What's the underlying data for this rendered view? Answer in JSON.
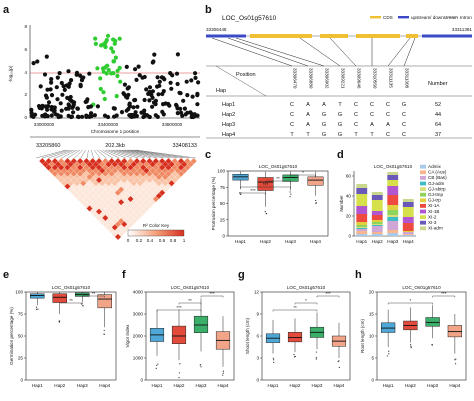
{
  "colors": {
    "hap1": "#4ea7d6",
    "hap2": "#e24b3c",
    "hap3": "#3aaf69",
    "hap4": "#f2a489",
    "cds": "#f0c033",
    "utr": "#3b49c9",
    "intron": "#5a5a5a",
    "manhattan_dark": "#111111",
    "manhattan_highlight": "#2ecc2e",
    "threshold": "#d64545"
  },
  "panel_labels": {
    "a": "a",
    "b": "b",
    "c": "c",
    "d": "d",
    "e": "e",
    "f": "f",
    "g": "g",
    "h": "h"
  },
  "panel_a": {
    "ylabel": "-log₁₀(p)",
    "yticks": [
      "0",
      "2",
      "4",
      "6",
      "8"
    ],
    "xticks": [
      "33000000",
      "33400000",
      "33800000"
    ],
    "xlabel": "Chromosome 1 position",
    "region_left": "33205860",
    "region_mid": "202.3kb",
    "region_right": "33408133",
    "color_key_label": "R² Color Key",
    "color_key_ticks": [
      "0",
      "0.2",
      "0.4",
      "0.6",
      "0.8",
      "1"
    ]
  },
  "panel_b": {
    "gene": "LOC_Os01g57610",
    "legend": [
      "CDS",
      "upstream/ downstream",
      "Intron"
    ],
    "coord_left": "33306448",
    "coord_right": "33311391",
    "position_header": "Position",
    "hap_header": "Hap",
    "number_header": "Number",
    "positions": [
      "33306470",
      "33306880",
      "33306902",
      "33309221",
      "33309646",
      "33310550",
      "33311135",
      "33311308"
    ],
    "rows": [
      {
        "hap": "Hap1",
        "alleles": [
          "C",
          "A",
          "A",
          "T",
          "C",
          "C",
          "C",
          "G"
        ],
        "number": "52"
      },
      {
        "hap": "Hap2",
        "alleles": [
          "C",
          "A",
          "G",
          "G",
          "C",
          "C",
          "C",
          "C"
        ],
        "number": "44"
      },
      {
        "hap": "Hap3",
        "alleles": [
          "C",
          "A",
          "G",
          "G",
          "C",
          "A",
          "A",
          "C"
        ],
        "number": "64"
      },
      {
        "hap": "Hap4",
        "alleles": [
          "T",
          "T",
          "G",
          "G",
          "T",
          "T",
          "C",
          "C"
        ],
        "number": "37"
      }
    ]
  },
  "chart_data": [
    {
      "panel": "c",
      "type": "box",
      "title": "LOC_Os01g57610",
      "ylabel": "Protrusion percentage (%)",
      "ylim": [
        0,
        100
      ],
      "yticks": [
        "0",
        "25",
        "50",
        "75",
        "100"
      ],
      "categories": [
        "Hap1",
        "Hap2",
        "Hap3",
        "Hap4"
      ],
      "boxes": [
        {
          "q1": 86,
          "median": 91,
          "q3": 95,
          "lo": 72,
          "hi": 99
        },
        {
          "q1": 70,
          "median": 83,
          "q3": 90,
          "lo": 45,
          "hi": 99
        },
        {
          "q1": 84,
          "median": 90,
          "q3": 94,
          "lo": 70,
          "hi": 99
        },
        {
          "q1": 78,
          "median": 86,
          "q3": 91,
          "lo": 62,
          "hi": 99
        }
      ],
      "significance": [
        "***",
        "***",
        "**",
        "*"
      ]
    },
    {
      "panel": "d",
      "type": "stacked-bar",
      "title": "LOC_Os01g57610",
      "ylabel": "Number",
      "ylim": [
        0,
        65
      ],
      "yticks": [
        "0",
        "20",
        "40",
        "60"
      ],
      "categories": [
        "Hap1",
        "Hap2",
        "Hap3",
        "Hap4"
      ],
      "series": [
        {
          "name": "Admix",
          "color": "#a9c9ea",
          "values": [
            2,
            2,
            3,
            1
          ]
        },
        {
          "name": "CA (Aus)",
          "color": "#f8b58e",
          "values": [
            3,
            2,
            3,
            1
          ]
        },
        {
          "name": "CB (Bas)",
          "color": "#cfa6d6",
          "values": [
            2,
            6,
            9,
            2
          ]
        },
        {
          "name": "GJ-adm",
          "color": "#3dbcc6",
          "values": [
            1,
            1,
            4,
            0
          ]
        },
        {
          "name": "GJ-sbtrp",
          "color": "#d7df7a",
          "values": [
            1,
            1,
            2,
            0
          ]
        },
        {
          "name": "GJ-tmp",
          "color": "#8fd35d",
          "values": [
            2,
            2,
            5,
            0
          ]
        },
        {
          "name": "GJ-trp",
          "color": "#e0d03d",
          "values": [
            3,
            2,
            5,
            1
          ]
        },
        {
          "name": "XI-1A",
          "color": "#ee4a3f",
          "values": [
            8,
            5,
            10,
            8
          ]
        },
        {
          "name": "XI-1B",
          "color": "#b155d1",
          "values": [
            8,
            4,
            9,
            6
          ]
        },
        {
          "name": "XI-2",
          "color": "#d6e04b",
          "values": [
            12,
            11,
            6,
            10
          ]
        },
        {
          "name": "XI-3",
          "color": "#6b59b9",
          "values": [
            6,
            5,
            5,
            5
          ]
        },
        {
          "name": "XI-adm",
          "color": "#c7d78c",
          "values": [
            4,
            3,
            3,
            3
          ]
        }
      ]
    },
    {
      "panel": "e",
      "type": "box",
      "title": "LOC_Os01g57610",
      "ylabel": "Germination percentage (%)",
      "ylim": [
        0,
        100
      ],
      "yticks": [
        "0",
        "25",
        "50",
        "75",
        "100"
      ],
      "categories": [
        "Hap1",
        "Hap2",
        "Hap3",
        "Hap4"
      ],
      "boxes": [
        {
          "q1": 93,
          "median": 96,
          "q3": 98,
          "lo": 85,
          "hi": 100
        },
        {
          "q1": 88,
          "median": 94,
          "q3": 98,
          "lo": 75,
          "hi": 100
        },
        {
          "q1": 95,
          "median": 97,
          "q3": 99,
          "lo": 88,
          "hi": 100
        },
        {
          "q1": 82,
          "median": 92,
          "q3": 97,
          "lo": 60,
          "hi": 100
        }
      ],
      "significance": [
        "**",
        "**"
      ]
    },
    {
      "panel": "f",
      "type": "box",
      "title": "LOC_Os01g57610",
      "ylabel": "Vigor index",
      "ylim": [
        0,
        4000
      ],
      "yticks": [
        "0",
        "1000",
        "2000",
        "3000",
        "4000"
      ],
      "categories": [
        "Hap1",
        "Hap2",
        "Hap3",
        "Hap4"
      ],
      "boxes": [
        {
          "q1": 1750,
          "median": 2050,
          "q3": 2350,
          "lo": 1100,
          "hi": 3200
        },
        {
          "q1": 1650,
          "median": 2000,
          "q3": 2450,
          "lo": 900,
          "hi": 3200
        },
        {
          "q1": 2150,
          "median": 2500,
          "q3": 2900,
          "lo": 1300,
          "hi": 3700
        },
        {
          "q1": 1400,
          "median": 1800,
          "q3": 2200,
          "lo": 600,
          "hi": 2900
        }
      ],
      "significance": [
        "***",
        "**",
        "***"
      ]
    },
    {
      "panel": "g",
      "type": "box",
      "title": "LOC_Os01g57610",
      "ylabel": "Shoot length (cm)",
      "ylim": [
        0,
        12
      ],
      "yticks": [
        "0",
        "3",
        "6",
        "9",
        "12"
      ],
      "categories": [
        "Hap1",
        "Hap2",
        "Hap3",
        "Hap4"
      ],
      "boxes": [
        {
          "q1": 5.1,
          "median": 5.7,
          "q3": 6.3,
          "lo": 3.6,
          "hi": 8.2
        },
        {
          "q1": 5.2,
          "median": 5.8,
          "q3": 6.5,
          "lo": 3.8,
          "hi": 8.4
        },
        {
          "q1": 5.8,
          "median": 6.5,
          "q3": 7.2,
          "lo": 4.2,
          "hi": 9.2
        },
        {
          "q1": 4.6,
          "median": 5.3,
          "q3": 6.0,
          "lo": 3.0,
          "hi": 7.8
        }
      ],
      "significance": [
        "**",
        "*",
        "***"
      ]
    },
    {
      "panel": "h",
      "type": "box",
      "title": "LOC_Os01g57610",
      "ylabel": "Root length (cm)",
      "ylim": [
        0,
        20
      ],
      "yticks": [
        "0",
        "5",
        "10",
        "15",
        "20"
      ],
      "categories": [
        "Hap1",
        "Hap2",
        "Hap3",
        "Hap4"
      ],
      "boxes": [
        {
          "q1": 10.8,
          "median": 11.8,
          "q3": 13.0,
          "lo": 7.5,
          "hi": 16.0
        },
        {
          "q1": 11.4,
          "median": 12.4,
          "q3": 13.4,
          "lo": 8.5,
          "hi": 16.5
        },
        {
          "q1": 12.2,
          "median": 13.1,
          "q3": 14.2,
          "lo": 9.5,
          "hi": 17.0
        },
        {
          "q1": 9.8,
          "median": 11.0,
          "q3": 12.4,
          "lo": 6.0,
          "hi": 15.0
        }
      ],
      "significance": [
        "*",
        "***"
      ]
    }
  ]
}
